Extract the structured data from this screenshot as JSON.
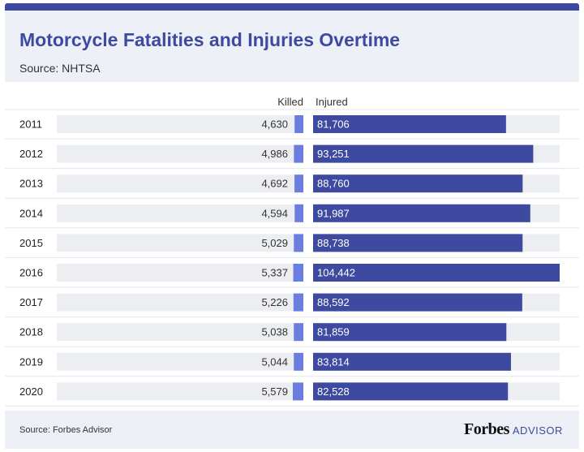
{
  "header": {
    "title": "Motorcycle Fatalities and Injuries Overtime",
    "subtitle": "Source: NHTSA"
  },
  "footer": {
    "source": "Source: Forbes Advisor",
    "brand_main": "Forbes",
    "brand_sub": "ADVISOR"
  },
  "colors": {
    "accent": "#3d4aa0",
    "killed_bar": "#6b7ddf",
    "injured_bar": "#3d4aa0",
    "track": "#eceef1"
  },
  "chart_data": {
    "type": "bar",
    "orientation": "horizontal",
    "categories": [
      "2011",
      "2012",
      "2013",
      "2014",
      "2015",
      "2016",
      "2017",
      "2018",
      "2019",
      "2020"
    ],
    "series": [
      {
        "name": "Killed",
        "values": [
          4630,
          4986,
          4692,
          4594,
          5029,
          5337,
          5226,
          5038,
          5044,
          5579
        ],
        "labels": [
          "4,630",
          "4,986",
          "4,692",
          "4,594",
          "5,029",
          "5,337",
          "5,226",
          "5,038",
          "5,044",
          "5,579"
        ]
      },
      {
        "name": "Injured",
        "values": [
          81706,
          93251,
          88760,
          91987,
          88738,
          104442,
          88592,
          81859,
          83814,
          82528
        ],
        "labels": [
          "81,706",
          "93,251",
          "88,760",
          "91,987",
          "88,738",
          "104,442",
          "88,592",
          "81,859",
          "83,814",
          "82,528"
        ]
      }
    ],
    "grid": false,
    "legend": "top"
  }
}
